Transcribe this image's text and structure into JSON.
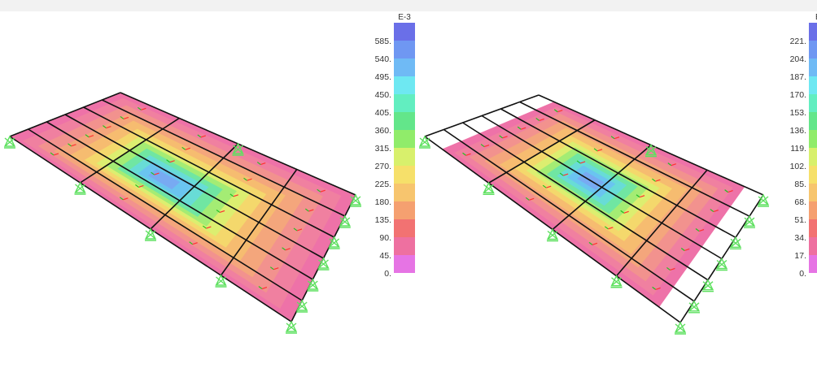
{
  "panels": [
    {
      "name": "left",
      "exponent_label": "E-3",
      "legend_values": [
        "585.",
        "540.",
        "495.",
        "450.",
        "405.",
        "360.",
        "315.",
        "270.",
        "225.",
        "180.",
        "135.",
        "90.",
        "45.",
        "0."
      ]
    },
    {
      "name": "right",
      "exponent_label": "E-",
      "legend_values": [
        "221.",
        "204.",
        "187.",
        "170.",
        "153.",
        "136.",
        "119.",
        "102.",
        "85.",
        "68.",
        "51.",
        "34.",
        "17.",
        "0."
      ]
    }
  ],
  "legend_colors": [
    "#6a6fe8",
    "#6f97f2",
    "#6fbaf5",
    "#6ee8f2",
    "#62eec0",
    "#63e68a",
    "#90ec6a",
    "#d8f06c",
    "#f6e06a",
    "#f7c56e",
    "#f5a070",
    "#f27272",
    "#ee70a0",
    "#e674e4"
  ],
  "colors": {
    "grid_line": "#111111",
    "support": "#5fe060",
    "axis_red": "#ff3030",
    "axis_green": "#20c020",
    "contour_low": "#f07aa2",
    "contour_mid": "#f0c070",
    "contour_high": "#5aaaf0"
  }
}
